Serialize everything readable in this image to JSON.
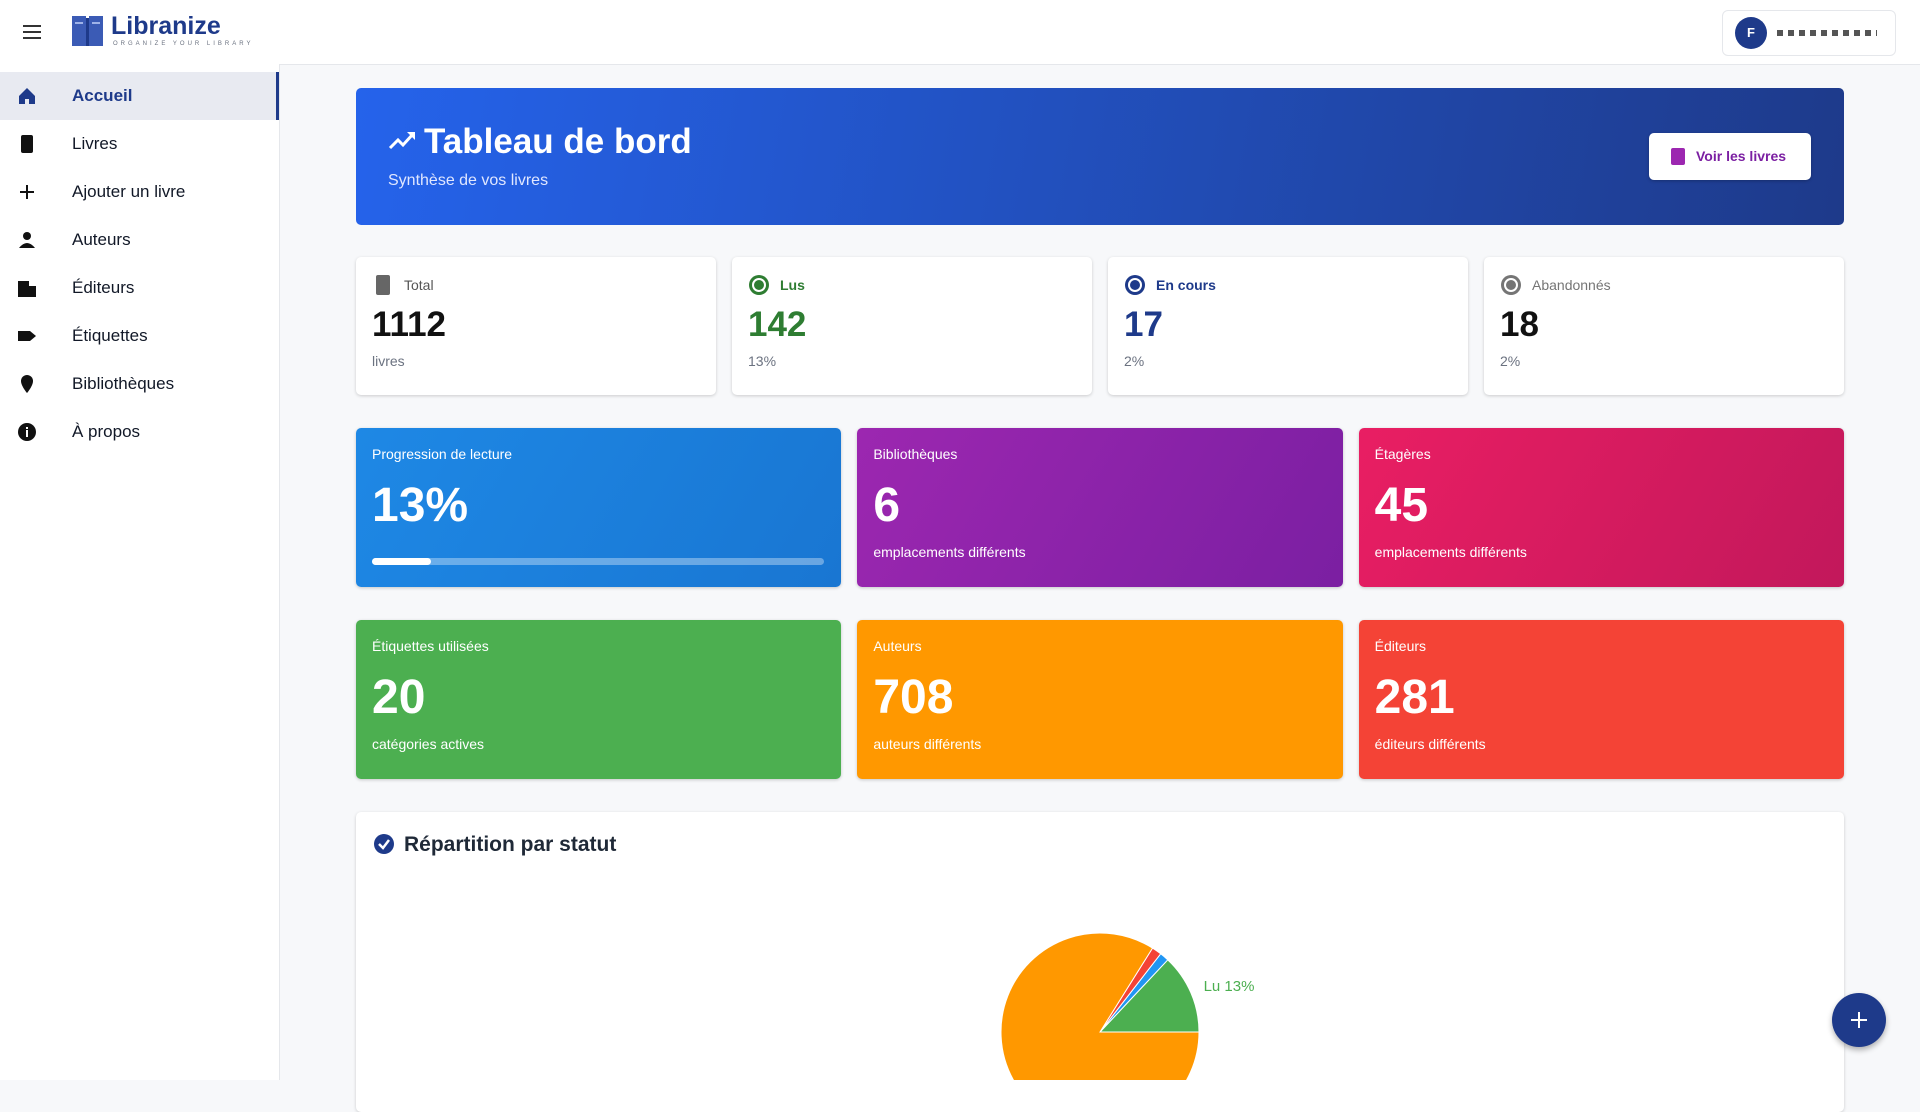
{
  "header": {
    "logo": "Libranize",
    "tagline": "ORGANIZE YOUR LIBRARY",
    "avatar": "F"
  },
  "nav": [
    "Accueil",
    "Livres",
    "Ajouter un livre",
    "Auteurs",
    "Éditeurs",
    "Étiquettes",
    "Bibliothèques",
    "À propos"
  ],
  "hero": {
    "title": "Tableau de bord",
    "subtitle": "Synthèse de vos livres",
    "button": "Voir les livres"
  },
  "stats": [
    {
      "label": "Total",
      "value": "1112",
      "sub": "livres"
    },
    {
      "label": "Lus",
      "value": "142",
      "sub": "13%"
    },
    {
      "label": "En cours",
      "value": "17",
      "sub": "2%"
    },
    {
      "label": "Abandonnés",
      "value": "18",
      "sub": "2%"
    }
  ],
  "tiles": [
    {
      "label": "Progression de lecture",
      "value": 13,
      "value_label": "13%"
    },
    {
      "label": "Bibliothèques",
      "value": "6",
      "sub": "emplacements différents"
    },
    {
      "label": "Étagères",
      "value": "45",
      "sub": "emplacements différents"
    },
    {
      "label": "Étiquettes utilisées",
      "value": "20",
      "sub": "catégories actives"
    },
    {
      "label": "Auteurs",
      "value": "708",
      "sub": "auteurs différents"
    },
    {
      "label": "Éditeurs",
      "value": "281",
      "sub": "éditeurs différents"
    }
  ],
  "chart_data": {
    "type": "pie",
    "title": "Répartition par statut",
    "values": [
      13,
      1.5,
      1.6,
      83.9
    ],
    "value_labels": [
      "Lu 13%",
      null,
      null,
      null
    ],
    "colors": [
      "#4caf50",
      "#2196f3",
      "#f44336",
      "#ff9800"
    ]
  }
}
